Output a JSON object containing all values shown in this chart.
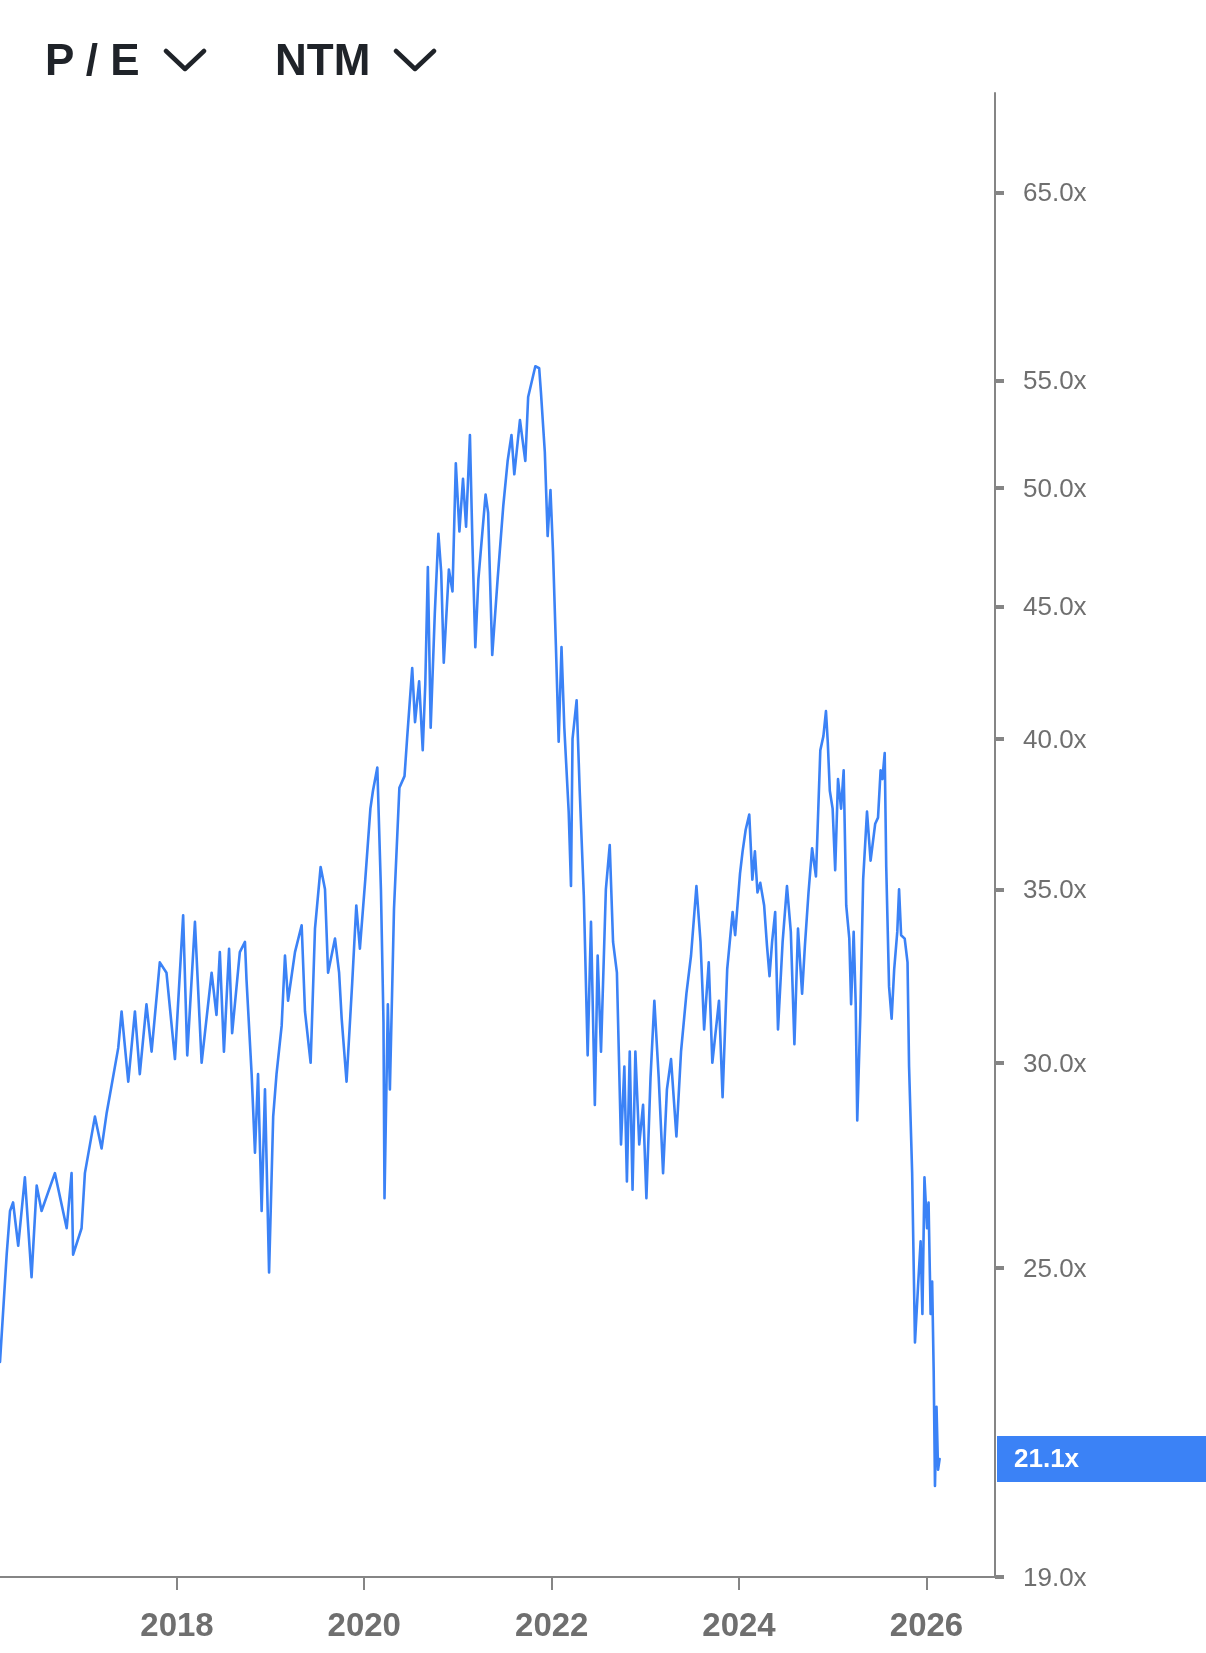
{
  "chart_data": {
    "type": "line",
    "title": "P / E",
    "subtitle": "NTM",
    "log": true,
    "color": "#3b82f6",
    "xlim": [
      "2016-02-11",
      "2026-09-25"
    ],
    "xticks": [
      "2018",
      "2020",
      "2022",
      "2024",
      "2026"
    ],
    "ylim": [
      19,
      71
    ],
    "yticks": [
      {
        "value": 19,
        "label": "19.0x"
      },
      {
        "value": 25,
        "label": "25.0x"
      },
      {
        "value": 30,
        "label": "30.0x"
      },
      {
        "value": 35,
        "label": "35.0x"
      },
      {
        "value": 40,
        "label": "40.0x"
      },
      {
        "value": 45,
        "label": "45.0x"
      },
      {
        "value": 50,
        "label": "50.0x"
      },
      {
        "value": 55,
        "label": "55.0x"
      },
      {
        "value": 65,
        "label": "65.0x"
      }
    ],
    "annotations": [
      {
        "text": "21.1x",
        "x": "2026-02-21",
        "y": 21.1
      }
    ],
    "x": [
      "2016-02-11",
      "2016-03-08",
      "2016-03-21",
      "2016-04-02",
      "2016-04-22",
      "2016-05-18",
      "2016-06-13",
      "2016-07-03",
      "2016-07-22",
      "2016-09-12",
      "2016-10-28",
      "2016-11-16",
      "2016-11-22",
      "2016-12-25",
      "2017-01-07",
      "2017-02-15",
      "2017-03-13",
      "2017-04-02",
      "2017-04-21",
      "2017-05-17",
      "2017-05-30",
      "2017-06-25",
      "2017-07-21",
      "2017-08-09",
      "2017-09-04",
      "2017-09-24",
      "2017-10-26",
      "2017-11-21",
      "2017-12-24",
      "2018-01-25",
      "2018-02-10",
      "2018-03-12",
      "2018-04-07",
      "2018-05-16",
      "2018-06-04",
      "2018-06-17",
      "2018-07-03",
      "2018-07-23",
      "2018-08-04",
      "2018-09-03",
      "2018-09-23",
      "2018-09-29",
      "2018-10-19",
      "2018-11-01",
      "2018-11-13",
      "2018-11-27",
      "2018-12-10",
      "2018-12-26",
      "2019-01-11",
      "2019-01-24",
      "2019-02-13",
      "2019-02-26",
      "2019-03-10",
      "2019-04-06",
      "2019-05-02",
      "2019-05-15",
      "2019-06-06",
      "2019-06-23",
      "2019-07-15",
      "2019-08-01",
      "2019-08-13",
      "2019-09-09",
      "2019-09-25",
      "2019-10-05",
      "2019-10-24",
      "2019-11-15",
      "2019-12-01",
      "2019-12-15",
      "2020-01-05",
      "2020-01-25",
      "2020-02-04",
      "2020-02-21",
      "2020-03-06",
      "2020-03-16",
      "2020-03-20",
      "2020-04-02",
      "2020-04-10",
      "2020-04-26",
      "2020-05-17",
      "2020-06-06",
      "2020-06-16",
      "2020-07-06",
      "2020-07-17",
      "2020-08-02",
      "2020-08-16",
      "2020-08-26",
      "2020-09-05",
      "2020-09-16",
      "2020-10-02",
      "2020-10-16",
      "2020-10-27",
      "2020-11-06",
      "2020-11-26",
      "2020-12-10",
      "2020-12-23",
      "2021-01-06",
      "2021-01-20",
      "2021-02-01",
      "2021-02-16",
      "2021-02-26",
      "2021-03-09",
      "2021-03-21",
      "2021-04-18",
      "2021-04-28",
      "2021-05-14",
      "2021-06-04",
      "2021-06-26",
      "2021-07-13",
      "2021-07-28",
      "2021-08-08",
      "2021-08-30",
      "2021-09-20",
      "2021-10-01",
      "2021-10-29",
      "2021-11-13",
      "2021-11-20",
      "2021-12-05",
      "2021-12-16",
      "2021-12-27",
      "2022-01-06",
      "2022-01-17",
      "2022-01-28",
      "2022-02-08",
      "2022-02-19",
      "2022-03-08",
      "2022-03-17",
      "2022-03-23",
      "2022-04-08",
      "2022-04-20",
      "2022-05-06",
      "2022-05-21",
      "2022-06-03",
      "2022-06-18",
      "2022-06-29",
      "2022-07-12",
      "2022-07-31",
      "2022-08-15",
      "2022-08-28",
      "2022-09-12",
      "2022-09-28",
      "2022-10-11",
      "2022-10-21",
      "2022-11-01",
      "2022-11-12",
      "2022-11-23",
      "2022-12-08",
      "2022-12-23",
      "2023-01-05",
      "2023-01-21",
      "2023-02-05",
      "2023-02-22",
      "2023-03-11",
      "2023-03-26",
      "2023-04-11",
      "2023-05-02",
      "2023-05-20",
      "2023-06-10",
      "2023-06-28",
      "2023-07-19",
      "2023-08-04",
      "2023-08-18",
      "2023-09-05",
      "2023-09-19",
      "2023-10-15",
      "2023-10-29",
      "2023-11-16",
      "2023-12-07",
      "2023-12-17",
      "2024-01-05",
      "2024-01-15",
      "2024-01-27",
      "2024-02-10",
      "2024-02-22",
      "2024-03-03",
      "2024-03-13",
      "2024-03-24",
      "2024-04-08",
      "2024-04-19",
      "2024-04-29",
      "2024-05-09",
      "2024-05-21",
      "2024-06-01",
      "2024-06-19",
      "2024-07-06",
      "2024-07-21",
      "2024-08-04",
      "2024-08-18",
      "2024-09-03",
      "2024-09-14",
      "2024-09-28",
      "2024-10-12",
      "2024-10-27",
      "2024-11-13",
      "2024-11-25",
      "2024-12-05",
      "2024-12-12",
      "2024-12-20",
      "2024-12-31",
      "2025-01-10",
      "2025-01-21",
      "2025-02-02",
      "2025-02-12",
      "2025-02-22",
      "2025-03-06",
      "2025-03-13",
      "2025-03-23",
      "2025-03-31",
      "2025-04-06",
      "2025-04-18",
      "2025-04-29",
      "2025-05-14",
      "2025-05-28",
      "2025-06-15",
      "2025-06-26",
      "2025-07-06",
      "2025-07-13",
      "2025-07-22",
      "2025-07-28",
      "2025-08-08",
      "2025-08-18",
      "2025-08-28",
      "2025-09-09",
      "2025-09-16",
      "2025-09-24",
      "2025-10-08",
      "2025-10-19",
      "2025-10-25",
      "2025-11-06",
      "2025-11-17",
      "2025-11-29",
      "2025-12-09",
      "2025-12-16",
      "2025-12-24",
      "2026-01-03",
      "2026-01-09",
      "2026-01-17",
      "2026-01-23",
      "2026-01-29",
      "2026-02-03",
      "2026-02-09",
      "2026-02-15",
      "2026-02-21"
    ],
    "values": [
      23.0,
      25.3,
      26.3,
      26.5,
      25.5,
      27.1,
      24.8,
      26.9,
      26.3,
      27.2,
      25.9,
      27.2,
      25.3,
      25.9,
      27.2,
      28.6,
      27.8,
      28.7,
      29.4,
      30.4,
      31.4,
      29.5,
      31.4,
      29.7,
      31.6,
      30.3,
      32.8,
      32.5,
      30.1,
      34.2,
      30.2,
      34.0,
      30.0,
      32.5,
      31.3,
      33.1,
      30.3,
      33.2,
      30.8,
      33.1,
      33.4,
      32.3,
      29.7,
      27.7,
      29.7,
      26.3,
      29.3,
      24.9,
      28.6,
      29.7,
      31.0,
      33.0,
      31.7,
      33.1,
      33.9,
      31.4,
      30.0,
      33.8,
      35.7,
      35.0,
      32.5,
      33.5,
      32.5,
      31.2,
      29.5,
      32.2,
      34.5,
      33.2,
      35.3,
      37.6,
      38.2,
      39.0,
      35.0,
      31.1,
      26.6,
      31.6,
      29.3,
      34.4,
      38.3,
      38.7,
      40.0,
      42.6,
      40.6,
      42.1,
      39.6,
      42.0,
      46.6,
      40.4,
      44.7,
      48.0,
      46.4,
      42.8,
      46.5,
      45.6,
      51.1,
      48.1,
      50.4,
      48.3,
      52.4,
      47.5,
      43.4,
      46.1,
      49.7,
      48.9,
      43.1,
      46.1,
      49.2,
      51.2,
      52.4,
      50.6,
      53.1,
      51.2,
      54.2,
      55.7,
      55.6,
      54.4,
      51.6,
      47.9,
      49.9,
      47.2,
      43.5,
      39.9,
      43.4,
      40.4,
      37.5,
      35.1,
      40.0,
      41.4,
      38.2,
      34.8,
      30.2,
      34.0,
      28.9,
      33.0,
      30.3,
      35.0,
      36.4,
      33.4,
      32.5,
      27.9,
      29.9,
      27.0,
      30.3,
      26.8,
      30.3,
      27.9,
      28.9,
      26.6,
      29.6,
      31.7,
      29.6,
      27.2,
      29.3,
      30.1,
      28.1,
      30.3,
      31.9,
      33.0,
      35.1,
      33.4,
      30.9,
      32.8,
      30.0,
      31.7,
      29.1,
      32.6,
      34.3,
      33.6,
      35.5,
      36.2,
      36.9,
      37.4,
      35.3,
      36.2,
      34.9,
      35.2,
      34.5,
      33.3,
      32.4,
      33.4,
      34.3,
      30.9,
      33.4,
      35.1,
      33.7,
      30.5,
      33.8,
      31.9,
      33.3,
      34.9,
      36.3,
      35.4,
      39.6,
      40.1,
      41.0,
      39.9,
      38.2,
      37.6,
      35.6,
      38.6,
      37.6,
      38.9,
      34.5,
      33.5,
      31.6,
      33.7,
      31.6,
      28.5,
      31.3,
      35.3,
      37.5,
      35.9,
      37.1,
      37.3,
      38.9,
      38.6,
      39.5,
      35.7,
      32.1,
      31.2,
      32.6,
      33.7,
      35.0,
      33.6,
      33.5,
      32.8,
      29.9,
      27.2,
      23.4,
      24.6,
      25.6,
      24.0,
      27.1,
      25.9,
      26.5,
      24.0,
      24.7,
      22.8,
      20.6,
      22.1,
      20.9,
      21.1
    ]
  }
}
